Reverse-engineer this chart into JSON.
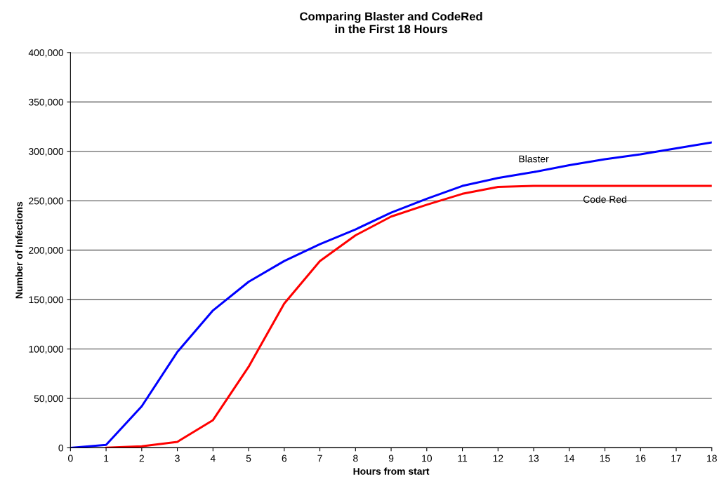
{
  "chart_data": {
    "type": "line",
    "title": "Comparing Blaster and CodeRed\nin the First 18 Hours",
    "xlabel": "Hours from start",
    "ylabel": "Number of Infections",
    "x": [
      0,
      1,
      2,
      3,
      4,
      5,
      6,
      7,
      8,
      9,
      10,
      11,
      12,
      13,
      14,
      15,
      16,
      17,
      18
    ],
    "series": [
      {
        "name": "Blaster",
        "color": "#0000ff",
        "values": [
          0,
          3000,
          42000,
          97000,
          139000,
          168000,
          189000,
          206000,
          221000,
          238000,
          252000,
          265000,
          273000,
          279000,
          286000,
          292000,
          297000,
          303000,
          309000
        ]
      },
      {
        "name": "Code Red",
        "color": "#ff0000",
        "values": [
          null,
          0,
          1500,
          6000,
          28000,
          82000,
          146000,
          189000,
          215000,
          234000,
          246000,
          257000,
          264000,
          265000,
          265000,
          265000,
          265000,
          265000,
          265000
        ]
      }
    ],
    "xlim": [
      0,
      18
    ],
    "xticks": [
      0,
      1,
      2,
      3,
      4,
      5,
      6,
      7,
      8,
      9,
      10,
      11,
      12,
      13,
      14,
      15,
      16,
      17,
      18
    ],
    "ylim": [
      0,
      400000
    ],
    "yticks": [
      {
        "value": 0,
        "label": "0"
      },
      {
        "value": 50000,
        "label": "50,000"
      },
      {
        "value": 100000,
        "label": "100,000"
      },
      {
        "value": 150000,
        "label": "150,000"
      },
      {
        "value": 200000,
        "label": "200,000"
      },
      {
        "value": 250000,
        "label": "250,000"
      },
      {
        "value": 300000,
        "label": "300,000"
      },
      {
        "value": 350000,
        "label": "350,000"
      },
      {
        "value": 400000,
        "label": "400,000"
      }
    ],
    "grid": "y",
    "legend": false,
    "marker": "none",
    "line_style": "solid"
  }
}
